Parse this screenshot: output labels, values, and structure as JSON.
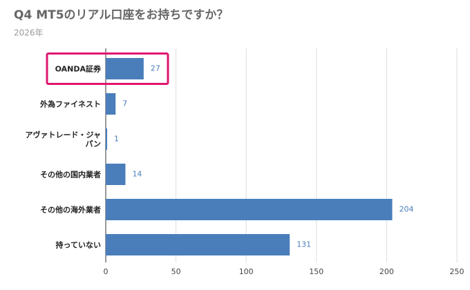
{
  "chart_data": {
    "type": "hbar",
    "title": "Q4 MT5のリアル口座をお持ちですか？",
    "subtitle": "2026年",
    "categories": [
      "OANDA証券",
      "外為ファイネスト",
      "アヴァトレード・ジャパン",
      "その他の国内業者",
      "その他の海外業者",
      "持っていない"
    ],
    "values": [
      27,
      7,
      1,
      14,
      204,
      131
    ],
    "color": "#4a7ebb",
    "xlim": [
      0,
      250
    ],
    "xticks": [
      0,
      50,
      100,
      150,
      200,
      250
    ],
    "grid": true,
    "highlight_index": 0,
    "highlight_color": "#e0156e"
  }
}
